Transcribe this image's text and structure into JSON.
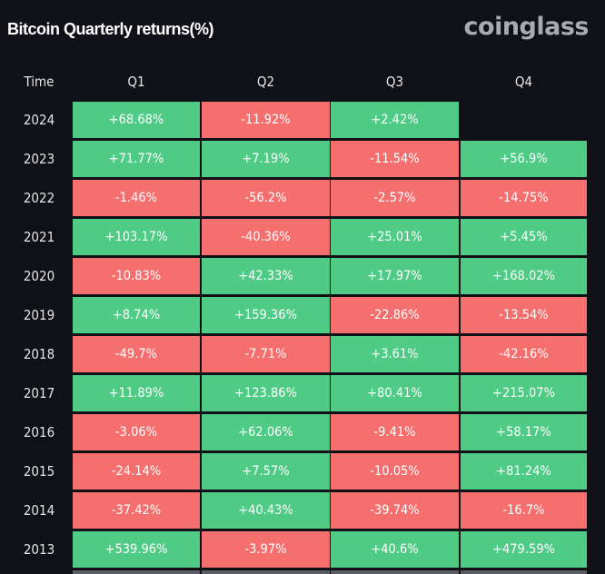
{
  "title": "Bitcoin Quarterly returns(%)",
  "logo": "coinglass",
  "colors": {
    "background": "#0f1117",
    "positive": "#4fcb86",
    "negative": "#f56f6f",
    "logo": "#a9abb0"
  },
  "chart_data": {
    "type": "heatmap",
    "title": "Bitcoin Quarterly returns(%)",
    "row_header": "Time",
    "columns": [
      "Q1",
      "Q2",
      "Q3",
      "Q4"
    ],
    "rows": [
      {
        "year": "2024",
        "values": [
          "+68.68%",
          "-11.92%",
          "+2.42%",
          ""
        ]
      },
      {
        "year": "2023",
        "values": [
          "+71.77%",
          "+7.19%",
          "-11.54%",
          "+56.9%"
        ]
      },
      {
        "year": "2022",
        "values": [
          "-1.46%",
          "-56.2%",
          "-2.57%",
          "-14.75%"
        ]
      },
      {
        "year": "2021",
        "values": [
          "+103.17%",
          "-40.36%",
          "+25.01%",
          "+5.45%"
        ]
      },
      {
        "year": "2020",
        "values": [
          "-10.83%",
          "+42.33%",
          "+17.97%",
          "+168.02%"
        ]
      },
      {
        "year": "2019",
        "values": [
          "+8.74%",
          "+159.36%",
          "-22.86%",
          "-13.54%"
        ]
      },
      {
        "year": "2018",
        "values": [
          "-49.7%",
          "-7.71%",
          "+3.61%",
          "-42.16%"
        ]
      },
      {
        "year": "2017",
        "values": [
          "+11.89%",
          "+123.86%",
          "+80.41%",
          "+215.07%"
        ]
      },
      {
        "year": "2016",
        "values": [
          "-3.06%",
          "+62.06%",
          "-9.41%",
          "+58.17%"
        ]
      },
      {
        "year": "2015",
        "values": [
          "-24.14%",
          "+7.57%",
          "-10.05%",
          "+81.24%"
        ]
      },
      {
        "year": "2014",
        "values": [
          "-37.42%",
          "+40.43%",
          "-39.74%",
          "-16.7%"
        ]
      },
      {
        "year": "2013",
        "values": [
          "+539.96%",
          "-3.97%",
          "+40.6%",
          "+479.59%"
        ]
      }
    ]
  }
}
